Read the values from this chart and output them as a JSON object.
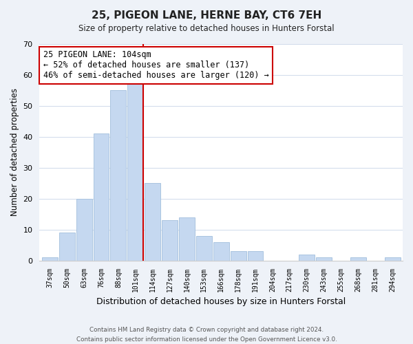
{
  "title": "25, PIGEON LANE, HERNE BAY, CT6 7EH",
  "subtitle": "Size of property relative to detached houses in Hunters Forstal",
  "xlabel": "Distribution of detached houses by size in Hunters Forstal",
  "ylabel": "Number of detached properties",
  "categories": [
    "37sqm",
    "50sqm",
    "63sqm",
    "76sqm",
    "88sqm",
    "101sqm",
    "114sqm",
    "127sqm",
    "140sqm",
    "153sqm",
    "166sqm",
    "178sqm",
    "191sqm",
    "204sqm",
    "217sqm",
    "230sqm",
    "243sqm",
    "255sqm",
    "268sqm",
    "281sqm",
    "294sqm"
  ],
  "values": [
    1,
    9,
    20,
    41,
    55,
    58,
    25,
    13,
    14,
    8,
    6,
    3,
    3,
    0,
    0,
    2,
    1,
    0,
    1,
    0,
    1
  ],
  "bar_color": "#c5d8f0",
  "bar_edge_color": "#aac4e0",
  "vline_x_index": 5,
  "vline_color": "#cc0000",
  "annotation_line1": "25 PIGEON LANE: 104sqm",
  "annotation_line2": "← 52% of detached houses are smaller (137)",
  "annotation_line3": "46% of semi-detached houses are larger (120) →",
  "annotation_box_color": "#ffffff",
  "annotation_box_edge": "#cc0000",
  "ylim": [
    0,
    70
  ],
  "yticks": [
    0,
    10,
    20,
    30,
    40,
    50,
    60,
    70
  ],
  "footer1": "Contains HM Land Registry data © Crown copyright and database right 2024.",
  "footer2": "Contains public sector information licensed under the Open Government Licence v3.0.",
  "bg_color": "#eef2f8",
  "plot_bg_color": "#ffffff"
}
